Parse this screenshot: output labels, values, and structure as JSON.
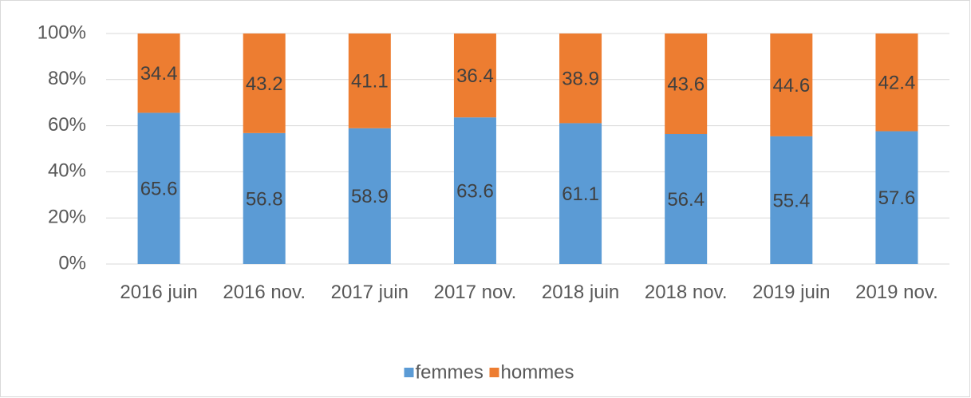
{
  "chart_data": {
    "type": "stacked_bar",
    "categories": [
      "2016 juin",
      "2016 nov.",
      "2017 juin",
      "2017 nov.",
      "2018 juin",
      "2018 nov.",
      "2019 juin",
      "2019 nov."
    ],
    "series": [
      {
        "name": "femmes",
        "color": "#5b9bd5",
        "values": [
          65.6,
          56.8,
          58.9,
          63.6,
          61.1,
          56.4,
          55.4,
          57.6
        ]
      },
      {
        "name": "hommes",
        "color": "#ed7d31",
        "values": [
          34.4,
          43.2,
          41.1,
          36.4,
          38.9,
          43.6,
          44.6,
          42.4
        ]
      }
    ],
    "ylim": [
      0,
      100
    ],
    "yticks": [
      {
        "value": 0,
        "label": "0%"
      },
      {
        "value": 20,
        "label": "20%"
      },
      {
        "value": 40,
        "label": "40%"
      },
      {
        "value": 60,
        "label": "60%"
      },
      {
        "value": 80,
        "label": "80%"
      },
      {
        "value": 100,
        "label": "100%"
      }
    ],
    "grid": true,
    "legend": "bottom"
  }
}
